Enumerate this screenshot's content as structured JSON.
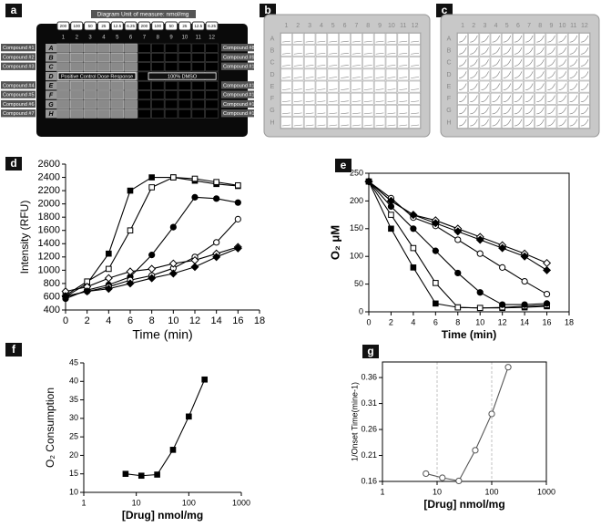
{
  "plate": {
    "columns": [
      "1",
      "2",
      "3",
      "4",
      "5",
      "6",
      "7",
      "8",
      "9",
      "10",
      "11",
      "12"
    ],
    "rows": [
      "A",
      "B",
      "C",
      "D",
      "E",
      "F",
      "G",
      "H"
    ]
  },
  "diagram": {
    "panel_label": "a",
    "title": "Diagram Unit of measure: nmol/mg",
    "doses": [
      "200",
      "100",
      "50",
      "25",
      "12.5",
      "6.25",
      "200",
      "100",
      "50",
      "25",
      "12.5",
      "6.25"
    ],
    "compounds_left": [
      "Compound #1",
      "Compound #2",
      "Compound #3",
      "Compound #4",
      "Compound #5",
      "Compound #6",
      "Compound #7"
    ],
    "compounds_right": [
      "Compound #8",
      "Compound #9",
      "Compound #10",
      "Compound #11",
      "Compound #12",
      "Compound #13",
      "Compound #14"
    ],
    "positive_control": "Positive Control Dose Response",
    "dmso": "100% DMSO"
  },
  "photos": [
    {
      "panel_label": "b"
    },
    {
      "panel_label": "c"
    }
  ],
  "chart_data": [
    {
      "type": "line",
      "panel_label": "d",
      "x_label": "Time (min)",
      "y_label": "Intensity (RFU)",
      "x": [
        0,
        2,
        4,
        6,
        8,
        10,
        12,
        14,
        16
      ],
      "xlim": [
        0,
        18
      ],
      "xticks": [
        0,
        2,
        4,
        6,
        8,
        10,
        12,
        14,
        16,
        18
      ],
      "ylim": [
        400,
        2600
      ],
      "yticks": [
        400,
        600,
        800,
        1000,
        1200,
        1400,
        1600,
        1800,
        2000,
        2200,
        2400,
        2600
      ],
      "frame": false,
      "grid": false,
      "xscale": "linear",
      "series": [
        {
          "color": "#000",
          "marker": "square",
          "filled": true,
          "values": [
            600,
            800,
            1250,
            2200,
            2400,
            2400,
            2350,
            2300,
            2270
          ]
        },
        {
          "color": "#000",
          "marker": "square",
          "filled": false,
          "values": [
            620,
            830,
            1020,
            1600,
            2250,
            2400,
            2380,
            2330,
            2280
          ]
        },
        {
          "color": "#000",
          "marker": "circle",
          "filled": true,
          "values": [
            570,
            700,
            780,
            900,
            1230,
            1650,
            2100,
            2080,
            2020
          ]
        },
        {
          "color": "#000",
          "marker": "circle",
          "filled": false,
          "values": [
            600,
            680,
            750,
            850,
            920,
            1030,
            1200,
            1420,
            1770
          ]
        },
        {
          "color": "#000",
          "marker": "diamond",
          "filled": false,
          "values": [
            680,
            750,
            880,
            980,
            1020,
            1100,
            1150,
            1250,
            1350
          ]
        },
        {
          "color": "#000",
          "marker": "diamond",
          "filled": true,
          "values": [
            610,
            680,
            720,
            800,
            880,
            950,
            1050,
            1200,
            1330
          ]
        }
      ]
    },
    {
      "type": "line",
      "panel_label": "e",
      "x_label": "Time (min)",
      "y_label": "O₂ μM",
      "x": [
        0,
        2,
        4,
        6,
        8,
        10,
        12,
        14,
        16
      ],
      "xlim": [
        0,
        18
      ],
      "xticks": [
        0,
        2,
        4,
        6,
        8,
        10,
        12,
        14,
        16,
        18
      ],
      "ylim": [
        0,
        250
      ],
      "yticks": [
        0,
        50,
        100,
        150,
        200,
        250
      ],
      "frame": true,
      "grid": false,
      "xscale": "linear",
      "series": [
        {
          "color": "#000",
          "marker": "square",
          "filled": true,
          "values": [
            235,
            150,
            80,
            15,
            8,
            7,
            7,
            8,
            10
          ]
        },
        {
          "color": "#000",
          "marker": "square",
          "filled": false,
          "values": [
            235,
            175,
            115,
            52,
            8,
            7,
            8,
            10,
            12
          ]
        },
        {
          "color": "#000",
          "marker": "circle",
          "filled": true,
          "values": [
            235,
            190,
            150,
            110,
            70,
            35,
            13,
            13,
            15
          ]
        },
        {
          "color": "#000",
          "marker": "circle",
          "filled": false,
          "values": [
            235,
            205,
            170,
            155,
            130,
            105,
            80,
            55,
            32
          ]
        },
        {
          "color": "#000",
          "marker": "diamond",
          "filled": false,
          "values": [
            235,
            200,
            175,
            165,
            150,
            135,
            120,
            105,
            88
          ]
        },
        {
          "color": "#000",
          "marker": "diamond",
          "filled": true,
          "values": [
            235,
            200,
            175,
            160,
            145,
            130,
            115,
            100,
            75
          ]
        }
      ]
    },
    {
      "type": "line",
      "panel_label": "f",
      "x_label": "[Drug] nmol/mg",
      "y_label": "O₂ Consumption",
      "x": [
        6.25,
        12.5,
        25,
        50,
        100,
        200
      ],
      "xlim": [
        1,
        1000
      ],
      "xticks": [
        1,
        10,
        100,
        1000
      ],
      "ylim": [
        10,
        45
      ],
      "yticks": [
        10,
        15,
        20,
        25,
        30,
        35,
        40,
        45
      ],
      "frame": false,
      "grid": false,
      "xscale": "log",
      "series": [
        {
          "color": "#000",
          "marker": "square",
          "filled": true,
          "values": [
            15,
            14.5,
            14.8,
            21.5,
            30.5,
            40.5
          ]
        }
      ]
    },
    {
      "type": "line",
      "panel_label": "g",
      "x_label": "[Drug] nmol/mg",
      "y_label": "1/Onset Time(mine-1)",
      "x": [
        6.25,
        12.5,
        25,
        50,
        100,
        200
      ],
      "xlim": [
        1,
        1000
      ],
      "xticks": [
        1,
        10,
        100,
        1000
      ],
      "ylim": [
        0.16,
        0.39
      ],
      "yticks": [
        0.16,
        0.21,
        0.26,
        0.31,
        0.36
      ],
      "frame": true,
      "grid": true,
      "xscale": "log",
      "series": [
        {
          "color": "#555",
          "marker": "circle",
          "filled": false,
          "values": [
            0.175,
            0.167,
            0.161,
            0.22,
            0.29,
            0.38
          ]
        }
      ]
    }
  ]
}
